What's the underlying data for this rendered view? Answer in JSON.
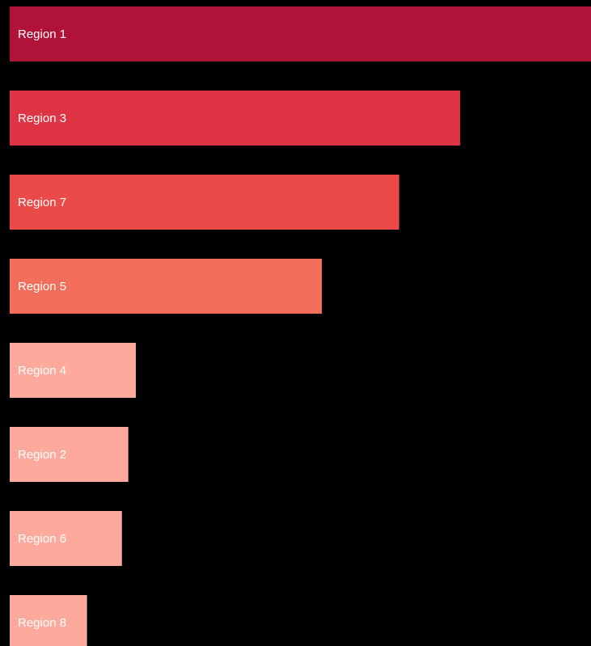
{
  "chart_data": {
    "type": "bar",
    "orientation": "horizontal",
    "categories": [
      "Region 1",
      "Region 3",
      "Region 7",
      "Region 5",
      "Region 4",
      "Region 2",
      "Region 6",
      "Region 8"
    ],
    "values": [
      100,
      77.5,
      67,
      53.7,
      21.7,
      20.4,
      19.3,
      13.3
    ],
    "xlim": [
      0,
      100
    ],
    "grid": false,
    "legend": "none",
    "title": "",
    "xlabel": "",
    "ylabel": "",
    "colors": [
      "#b01238",
      "#de3443",
      "#ea4a48",
      "#f26e5b",
      "#fdaa9c",
      "#fdaa9c",
      "#fdaa9c",
      "#fdaa9c"
    ],
    "background": "#000000"
  }
}
